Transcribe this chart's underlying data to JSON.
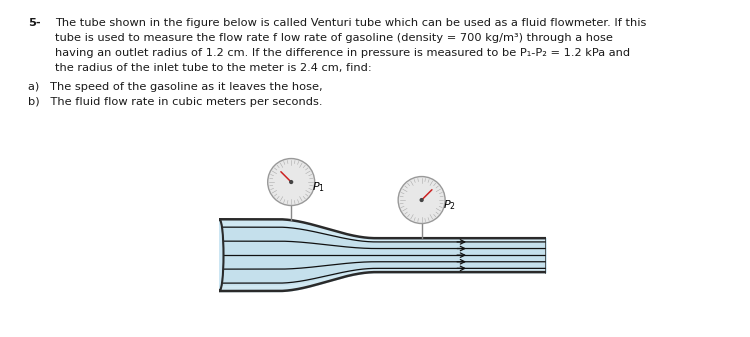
{
  "title_num": "5-",
  "text_line1": "The tube shown in the figure below is called Venturi tube which can be used as a fluid flowmeter. If this",
  "text_line2": "tube is used to measure the flow rate f low rate of gasoline (density = 700 kg/m³) through a hose",
  "text_line3": "having an outlet radius of 1.2 cm. If the difference in pressure is measured to be P₁-P₂ = 1.2 kPa and",
  "text_line4": "the radius of the inlet tube to the meter is 2.4 cm, find:",
  "part_a": "a)   The speed of the gasoline as it leaves the hose,",
  "part_b": "b)   The fluid flow rate in cubic meters per seconds.",
  "bg_color": "#ffffff",
  "text_color": "#1a1a1a",
  "tube_fill": "#c5e0ec",
  "tube_edge_light": "#7aafc0",
  "tube_edge_dark": "#2a2a2a",
  "flow_line_color": "#111111",
  "gauge_face": "#e8e8e8",
  "gauge_edge": "#999999",
  "gauge_needle": "#cc2222",
  "stem_color": "#888888"
}
